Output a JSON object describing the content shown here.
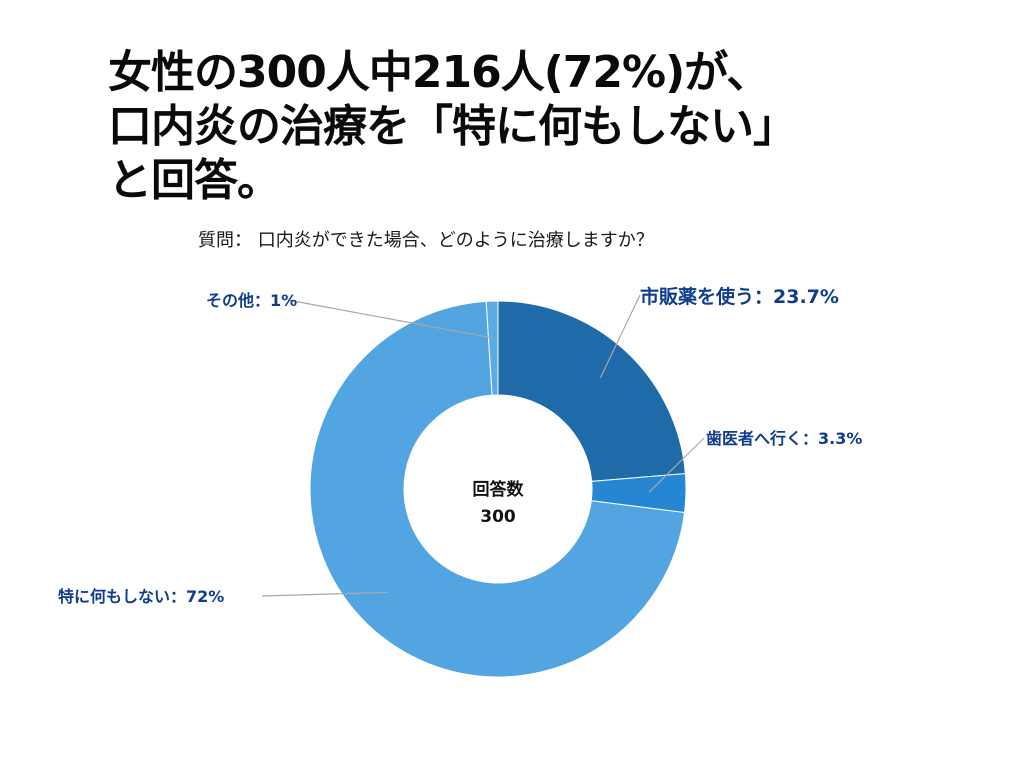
{
  "headline": {
    "line1": "女性の300人中216人(72%)が、",
    "line2": "口内炎の治療を「特に何もしない」",
    "line3": "と回答。"
  },
  "question": "質問： 口内炎ができた場合、どのように治療しますか？",
  "chart_data": {
    "type": "pie",
    "variant": "donut",
    "center_label": "回答数",
    "center_value": "300",
    "slices": [
      {
        "name": "市販薬を使う",
        "value": 23.7,
        "label": "市販薬を使う：23.7%",
        "color": "#1f6aa8"
      },
      {
        "name": "歯医者へ行く",
        "value": 3.3,
        "label": "歯医者へ行く：3.3%",
        "color": "#2587d4"
      },
      {
        "name": "特に何もしない",
        "value": 72,
        "label": "特に何もしない：72%",
        "color": "#53a5e2"
      },
      {
        "name": "その他",
        "value": 1,
        "label": "その他：1%",
        "color": "#5aaae5"
      }
    ]
  }
}
